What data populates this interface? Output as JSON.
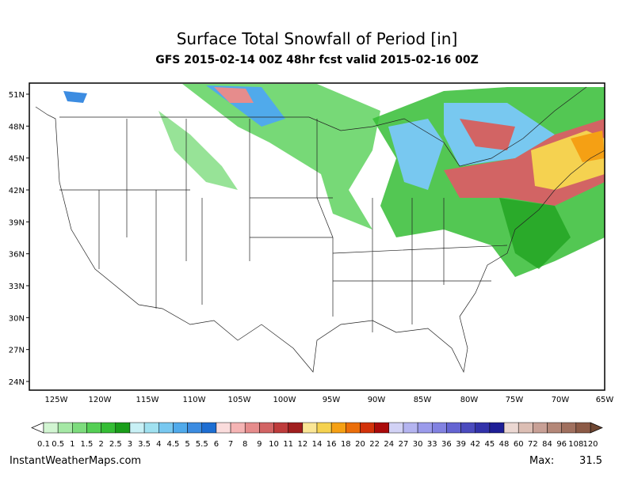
{
  "header": {
    "title": "Surface Total Snowfall of Period [in]",
    "subtitle": "GFS 2015-02-14 00Z 48hr fcst valid 2015-02-16 00Z"
  },
  "map": {
    "lat_labels": [
      "51N",
      "48N",
      "45N",
      "42N",
      "39N",
      "36N",
      "33N",
      "30N",
      "27N",
      "24N"
    ],
    "lon_labels": [
      "125W",
      "120W",
      "115W",
      "110W",
      "105W",
      "100W",
      "95W",
      "90W",
      "85W",
      "80W",
      "75W",
      "70W",
      "65W"
    ]
  },
  "colorbar": {
    "labels": [
      "0.1",
      "0.5",
      "1",
      "1.5",
      "2",
      "2.5",
      "3",
      "3.5",
      "4",
      "4.5",
      "5",
      "5.5",
      "6",
      "7",
      "8",
      "9",
      "10",
      "11",
      "12",
      "14",
      "16",
      "18",
      "20",
      "22",
      "24",
      "27",
      "30",
      "33",
      "36",
      "39",
      "42",
      "45",
      "48",
      "60",
      "72",
      "84",
      "96",
      "108",
      "120"
    ],
    "colors": [
      "#d2f5d2",
      "#a5e8a5",
      "#7ddc7d",
      "#55cf55",
      "#35bd35",
      "#1a9e1a",
      "#c8f0f5",
      "#a0e1f0",
      "#78c8f0",
      "#50aaeb",
      "#3c8ce1",
      "#1e6ed2",
      "#fadcdc",
      "#f5b4b4",
      "#e68c8c",
      "#d26464",
      "#be3c3c",
      "#a01e1e",
      "#fae696",
      "#f5d250",
      "#f5a014",
      "#eb6e0a",
      "#d2320a",
      "#aa0a0a",
      "#d2d2f5",
      "#b4b4f0",
      "#9b9beb",
      "#8282e1",
      "#6464d2",
      "#4b4bbe",
      "#3232aa",
      "#1e1e96",
      "#ebd7d2",
      "#dcbeb4",
      "#c8a096",
      "#b48778",
      "#a0705f",
      "#8c5a46"
    ],
    "under_color": "#ffffff",
    "over_color": "#6e4632"
  },
  "footer": {
    "source": "InstantWeatherMaps.com",
    "max_label": "Max:",
    "max_value": 31.5
  }
}
